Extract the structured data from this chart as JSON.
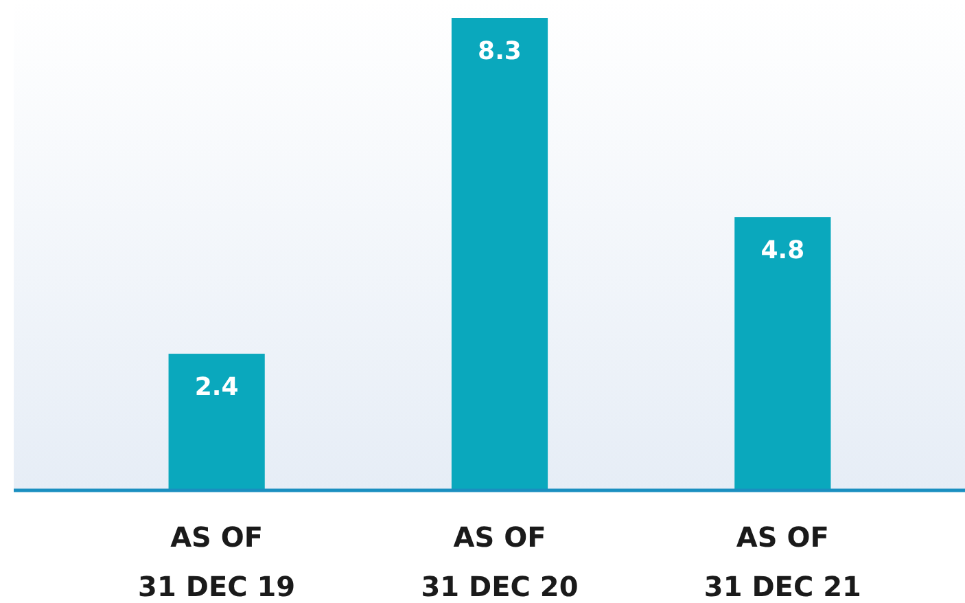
{
  "chart_data": {
    "type": "bar",
    "categories": [
      "AS OF 31 DEC 19",
      "AS OF 31 DEC 20",
      "AS OF 31 DEC 21"
    ],
    "values": [
      2.4,
      8.3,
      4.8
    ],
    "color": "#0aa8bd",
    "data_labels": true,
    "grid": false
  }
}
